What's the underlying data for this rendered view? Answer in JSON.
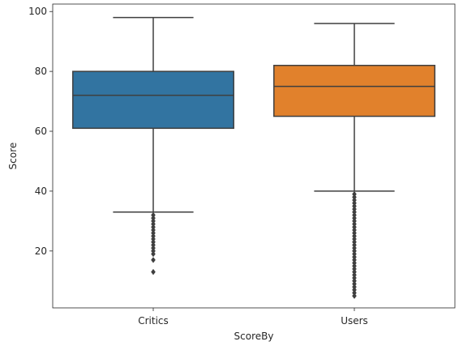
{
  "chart_data": {
    "type": "box",
    "title": "",
    "xlabel": "ScoreBy",
    "ylabel": "Score",
    "ylim": [
      1,
      102.5
    ],
    "yticks": [
      20,
      40,
      60,
      80,
      100
    ],
    "grid": false,
    "categories": [
      "Critics",
      "Users"
    ],
    "boxes": [
      {
        "category": "Critics",
        "color": "#3274a1",
        "whisker_low": 33,
        "q1": 61,
        "median": 72,
        "q3": 80,
        "whisker_high": 98,
        "outliers": [
          32,
          31,
          30,
          29,
          28,
          27,
          26,
          25,
          24,
          23,
          22,
          21,
          20,
          19,
          17,
          13
        ]
      },
      {
        "category": "Users",
        "color": "#e1812c",
        "whisker_low": 40,
        "q1": 65,
        "median": 75,
        "q3": 82,
        "whisker_high": 96,
        "outliers": [
          39,
          38,
          37,
          36,
          35,
          34,
          33,
          32,
          31,
          30,
          29,
          28,
          27,
          26,
          25,
          24,
          23,
          22,
          21,
          20,
          19,
          18,
          17,
          16,
          15,
          14,
          13,
          12,
          11,
          10,
          9,
          8,
          7,
          6,
          5
        ]
      }
    ],
    "line_color": "#3f3f3f"
  }
}
